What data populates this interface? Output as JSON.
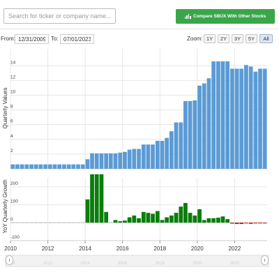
{
  "header": {
    "search_placeholder": "Search for ticker or company name...",
    "compare_label": "Compare SBUX With Other Stocks"
  },
  "range": {
    "from_label": "From:",
    "from_value": "12/31/2009",
    "to_label": "To:",
    "to_value": "07/01/2023"
  },
  "zoom": {
    "label": "Zoom:",
    "options": [
      "1Y",
      "2Y",
      "3Y",
      "5Y",
      "All"
    ],
    "active": "All"
  },
  "colors": {
    "value_bar": "#5b9bd5",
    "growth_positive": "#0a7d0a",
    "growth_negative": "#cc0000"
  },
  "chart_data": [
    {
      "type": "bar",
      "ylabel": "Quarterly Values",
      "yticks": [
        2,
        4,
        6,
        8,
        10,
        12,
        14
      ],
      "ylim": [
        0,
        16.3
      ],
      "grid": true,
      "x": [
        "2009-12-31",
        "2010-03-31",
        "2010-06-30",
        "2010-09-30",
        "2010-12-31",
        "2011-03-31",
        "2011-06-30",
        "2011-09-30",
        "2011-12-31",
        "2012-03-31",
        "2012-06-30",
        "2012-09-30",
        "2012-12-31",
        "2013-03-31",
        "2013-06-30",
        "2013-09-30",
        "2013-12-31",
        "2014-03-31",
        "2014-06-30",
        "2014-09-30",
        "2014-12-31",
        "2015-03-31",
        "2015-06-30",
        "2015-09-30",
        "2015-12-31",
        "2016-03-31",
        "2016-06-30",
        "2016-09-30",
        "2016-12-31",
        "2017-03-31",
        "2017-06-30",
        "2017-09-30",
        "2017-12-31",
        "2018-03-31",
        "2018-06-30",
        "2018-09-30",
        "2018-12-31",
        "2019-03-31",
        "2019-06-30",
        "2019-09-30",
        "2019-12-31",
        "2020-03-31",
        "2020-06-30",
        "2020-09-30",
        "2020-12-31",
        "2021-03-31",
        "2021-06-30",
        "2021-09-30",
        "2021-12-31",
        "2022-03-31",
        "2022-06-30",
        "2022-09-30",
        "2022-12-31",
        "2023-03-31",
        "2023-06-30"
      ],
      "values": [
        0.6,
        0.6,
        0.6,
        0.6,
        0.6,
        0.6,
        0.6,
        0.6,
        0.6,
        0.6,
        0.6,
        0.6,
        0.6,
        0.6,
        0.6,
        0.6,
        1.3,
        2.1,
        2.1,
        2.1,
        2.1,
        2.1,
        2.1,
        2.2,
        2.3,
        2.6,
        2.7,
        2.7,
        3.3,
        3.3,
        3.3,
        3.8,
        3.8,
        4.2,
        5.1,
        6.3,
        6.3,
        9.2,
        9.2,
        9.3,
        11.3,
        11.6,
        12.3,
        14.6,
        14.6,
        14.6,
        14.6,
        13.6,
        13.6,
        13.6,
        14.1,
        13.9,
        13.2,
        13.6,
        13.6
      ],
      "xaxis_ticks": [
        "2010",
        "2012",
        "2014",
        "2016",
        "2018",
        "2020",
        "2022"
      ]
    },
    {
      "type": "bar",
      "ylabel": "YoY Quarterly Growth",
      "yticks": [
        -100,
        0,
        100,
        200
      ],
      "ylim": [
        -100,
        250
      ],
      "values": [
        0,
        0,
        0,
        0,
        0,
        0,
        0,
        0,
        0,
        0,
        0,
        0,
        0,
        0,
        0,
        0,
        130,
        270,
        270,
        270,
        60,
        0,
        15,
        8,
        12,
        30,
        40,
        25,
        60,
        55,
        50,
        65,
        15,
        30,
        40,
        55,
        90,
        110,
        55,
        40,
        75,
        15,
        25,
        25,
        28,
        35,
        20,
        -5,
        -7,
        -7,
        -4,
        -6,
        -4,
        -4,
        -4
      ],
      "xaxis_ticks": [
        "2010",
        "2012",
        "2014",
        "2016",
        "2018",
        "2020",
        "2022"
      ]
    }
  ]
}
